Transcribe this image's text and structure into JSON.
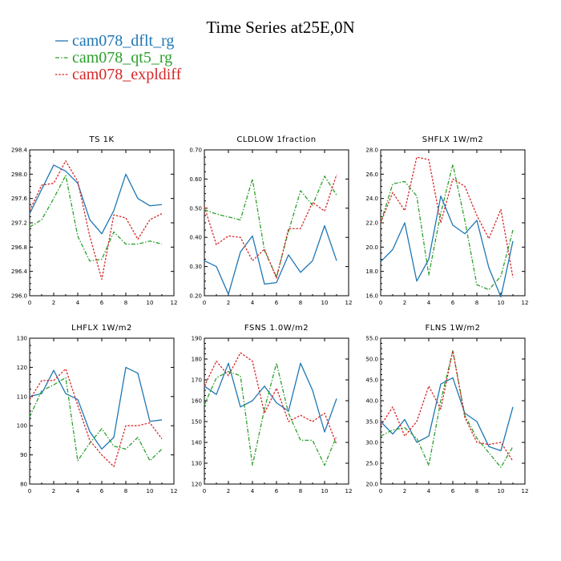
{
  "title": "Time Series at25E,0N",
  "colors": {
    "dflt": "#1f77b4",
    "qt5": "#2ca02c",
    "expldiff": "#d62728"
  },
  "legend": [
    {
      "key": "dflt",
      "label": "cam078_dflt_rg",
      "dash": "solid"
    },
    {
      "key": "qt5",
      "label": "cam078_qt5_rg",
      "dash": "dashdot"
    },
    {
      "key": "expldiff",
      "label": "cam078_expldiff",
      "dash": "dotted"
    }
  ],
  "chart_data": [
    {
      "type": "line",
      "title": "TS   1K",
      "x": [
        0,
        1,
        2,
        3,
        4,
        5,
        6,
        7,
        8,
        9,
        10,
        11
      ],
      "xlim": [
        0,
        12
      ],
      "xticks": [
        "0",
        "2",
        "4",
        "6",
        "8",
        "10",
        "12"
      ],
      "ylim": [
        296.0,
        298.4
      ],
      "yticks": [
        "296.0",
        "296.4",
        "296.8",
        "297.2",
        "297.6",
        "298.0",
        "298.4"
      ],
      "series": [
        {
          "name": "cam078_dflt_rg",
          "values": [
            297.35,
            297.75,
            298.15,
            298.05,
            297.85,
            297.25,
            297.02,
            297.4,
            298.0,
            297.6,
            297.48,
            297.5
          ]
        },
        {
          "name": "cam078_qt5_rg",
          "values": [
            297.13,
            297.25,
            297.6,
            297.98,
            296.98,
            296.57,
            296.6,
            297.05,
            296.85,
            296.85,
            296.9,
            296.85
          ]
        },
        {
          "name": "cam078_expldiff",
          "values": [
            297.4,
            297.82,
            297.85,
            298.22,
            297.88,
            296.98,
            296.27,
            297.33,
            297.28,
            296.93,
            297.25,
            297.35
          ]
        }
      ]
    },
    {
      "type": "line",
      "title": "CLDLOW   1fraction",
      "x": [
        0,
        1,
        2,
        3,
        4,
        5,
        6,
        7,
        8,
        9,
        10,
        11
      ],
      "xlim": [
        0,
        12
      ],
      "xticks": [
        "0",
        "2",
        "4",
        "6",
        "8",
        "10",
        "12"
      ],
      "ylim": [
        0.2,
        0.7
      ],
      "yticks": [
        "0.20",
        "0.30",
        "0.40",
        "0.50",
        "0.60",
        "0.70"
      ],
      "series": [
        {
          "name": "cam078_dflt_rg",
          "values": [
            0.32,
            0.3,
            0.205,
            0.35,
            0.405,
            0.24,
            0.245,
            0.34,
            0.28,
            0.32,
            0.44,
            0.32
          ]
        },
        {
          "name": "cam078_qt5_rg",
          "values": [
            0.495,
            0.48,
            0.47,
            0.46,
            0.6,
            0.355,
            0.265,
            0.42,
            0.56,
            0.51,
            0.61,
            0.545
          ]
        },
        {
          "name": "cam078_expldiff",
          "values": [
            0.505,
            0.375,
            0.405,
            0.4,
            0.32,
            0.36,
            0.26,
            0.43,
            0.43,
            0.52,
            0.49,
            0.615
          ]
        }
      ]
    },
    {
      "type": "line",
      "title": "SHFLX   1W/m2",
      "x": [
        0,
        1,
        2,
        3,
        4,
        5,
        6,
        7,
        8,
        9,
        10,
        11
      ],
      "xlim": [
        0,
        12
      ],
      "xticks": [
        "0",
        "2",
        "4",
        "6",
        "8",
        "10",
        "12"
      ],
      "ylim": [
        16.0,
        28.0
      ],
      "yticks": [
        "16.0",
        "18.0",
        "20.0",
        "22.0",
        "24.0",
        "26.0",
        "28.0"
      ],
      "series": [
        {
          "name": "cam078_dflt_rg",
          "values": [
            18.8,
            19.8,
            22.0,
            17.2,
            19.0,
            24.2,
            21.8,
            21.1,
            22.2,
            18.3,
            15.9,
            20.5
          ]
        },
        {
          "name": "cam078_qt5_rg",
          "values": [
            22.0,
            25.2,
            25.4,
            24.2,
            17.7,
            22.8,
            26.8,
            22.2,
            16.9,
            16.5,
            17.6,
            21.4
          ]
        },
        {
          "name": "cam078_expldiff",
          "values": [
            22.0,
            24.5,
            23.0,
            27.4,
            27.2,
            22.0,
            25.6,
            25.0,
            22.6,
            20.7,
            23.1,
            17.5
          ]
        }
      ]
    },
    {
      "type": "line",
      "title": "LHFLX   1W/m2",
      "x": [
        0,
        1,
        2,
        3,
        4,
        5,
        6,
        7,
        8,
        9,
        10,
        11
      ],
      "xlim": [
        0,
        12
      ],
      "xticks": [
        "0",
        "2",
        "4",
        "6",
        "8",
        "10",
        "12"
      ],
      "ylim": [
        80,
        130
      ],
      "yticks": [
        "80",
        "90",
        "100",
        "110",
        "120",
        "130"
      ],
      "series": [
        {
          "name": "cam078_dflt_rg",
          "values": [
            110,
            111,
            119,
            111,
            109,
            98,
            92,
            96,
            120,
            118,
            101.5,
            102
          ]
        },
        {
          "name": "cam078_qt5_rg",
          "values": [
            103,
            112,
            114,
            116.5,
            88,
            94,
            99,
            93,
            92,
            96,
            88,
            92
          ]
        },
        {
          "name": "cam078_expldiff",
          "values": [
            109,
            115.5,
            115.5,
            119.5,
            107,
            95,
            90,
            86,
            100,
            100,
            101,
            95.5
          ]
        }
      ]
    },
    {
      "type": "line",
      "title": "FSNS   1.0W/m2",
      "x": [
        0,
        1,
        2,
        3,
        4,
        5,
        6,
        7,
        8,
        9,
        10,
        11
      ],
      "xlim": [
        0,
        12
      ],
      "xticks": [
        "0",
        "2",
        "4",
        "6",
        "8",
        "10",
        "12"
      ],
      "ylim": [
        120,
        190
      ],
      "yticks": [
        "120",
        "130",
        "140",
        "150",
        "160",
        "170",
        "180",
        "190"
      ],
      "series": [
        {
          "name": "cam078_dflt_rg",
          "values": [
            167,
            163,
            178,
            157,
            160,
            167,
            159,
            155,
            178,
            165,
            145,
            161
          ]
        },
        {
          "name": "cam078_qt5_rg",
          "values": [
            158,
            171,
            174,
            172,
            129,
            156,
            178,
            154,
            141,
            141,
            129,
            143
          ]
        },
        {
          "name": "cam078_expldiff",
          "values": [
            167,
            179,
            172,
            183,
            179,
            154,
            166,
            150,
            153,
            150,
            154,
            139
          ]
        }
      ]
    },
    {
      "type": "line",
      "title": "FLNS   1W/m2",
      "x": [
        0,
        1,
        2,
        3,
        4,
        5,
        6,
        7,
        8,
        9,
        10,
        11
      ],
      "xlim": [
        0,
        12
      ],
      "xticks": [
        "0",
        "2",
        "4",
        "6",
        "8",
        "10",
        "12"
      ],
      "ylim": [
        20.0,
        55.0
      ],
      "yticks": [
        "20.0",
        "25.0",
        "30.0",
        "35.0",
        "40.0",
        "45.0",
        "50.0",
        "55.0"
      ],
      "series": [
        {
          "name": "cam078_dflt_rg",
          "values": [
            35,
            32,
            35.5,
            30,
            31.5,
            44,
            45.5,
            37,
            35,
            29,
            28,
            38.5
          ]
        },
        {
          "name": "cam078_qt5_rg",
          "values": [
            31.5,
            33,
            33.5,
            31,
            24.5,
            40,
            52,
            36.5,
            31,
            27.5,
            24,
            29
          ]
        },
        {
          "name": "cam078_expldiff",
          "values": [
            34,
            38.5,
            31.5,
            35,
            43.5,
            38,
            52,
            36,
            30,
            29.5,
            30,
            25.5
          ]
        }
      ]
    }
  ]
}
